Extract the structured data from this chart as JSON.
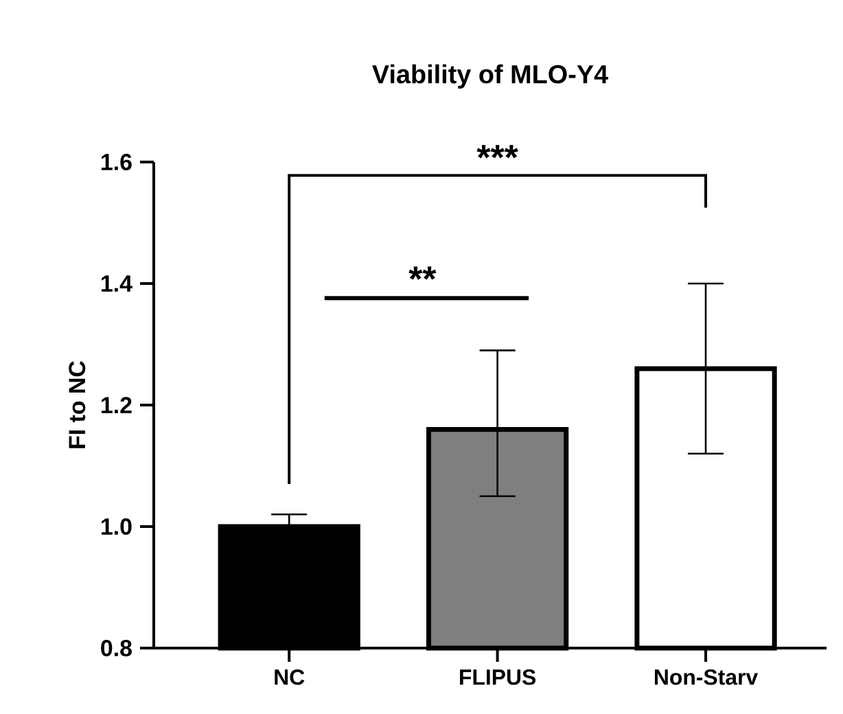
{
  "chart_data": {
    "type": "bar",
    "title": "Viability of MLO-Y4",
    "ylabel": "FI to NC",
    "categories": [
      "NC",
      "FLIPUS",
      "Non-Starv"
    ],
    "values": [
      1.0,
      1.16,
      1.26
    ],
    "colors": [
      "#000000",
      "#7f7e80",
      "#ffffff"
    ],
    "errors": [
      [
        1.0,
        1.02
      ],
      [
        1.05,
        1.29
      ],
      [
        1.12,
        1.4
      ]
    ],
    "ylim": [
      0.8,
      1.6
    ],
    "yticks": [
      0.8,
      {
        "value": 1.0,
        "label": "1.0"
      },
      1.2,
      1.4,
      1.6
    ],
    "grid": false,
    "annotations": [
      "**",
      "***"
    ]
  }
}
